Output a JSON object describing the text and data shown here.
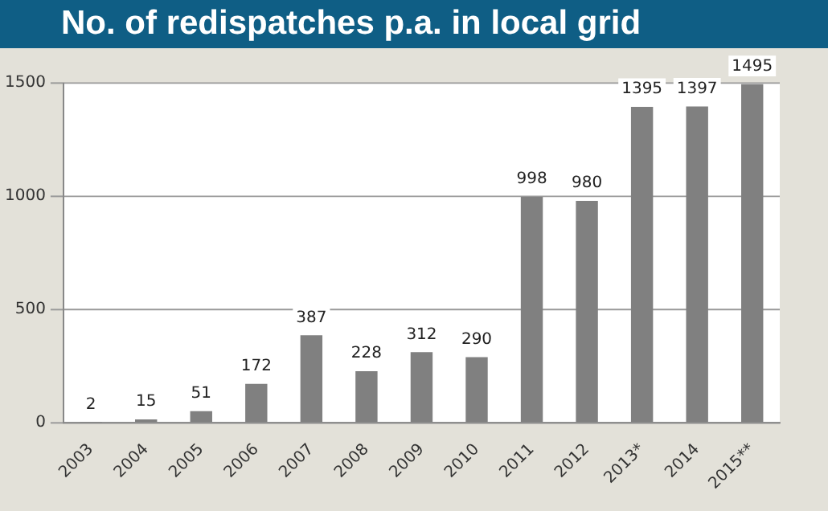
{
  "chart_data": {
    "type": "bar",
    "title": "No. of redispatches p.a. in local grid",
    "categories": [
      "2003",
      "2004",
      "2005",
      "2006",
      "2007",
      "2008",
      "2009",
      "2010",
      "2011",
      "2012",
      "2013*",
      "2014",
      "2015**"
    ],
    "values": [
      2,
      15,
      51,
      172,
      387,
      228,
      312,
      290,
      998,
      980,
      1395,
      1397,
      1495
    ],
    "color": "#808080",
    "ylim": [
      0,
      1500
    ],
    "yticks": [
      0,
      500,
      1000,
      1500
    ],
    "grid": "y",
    "data_labels": true
  }
}
